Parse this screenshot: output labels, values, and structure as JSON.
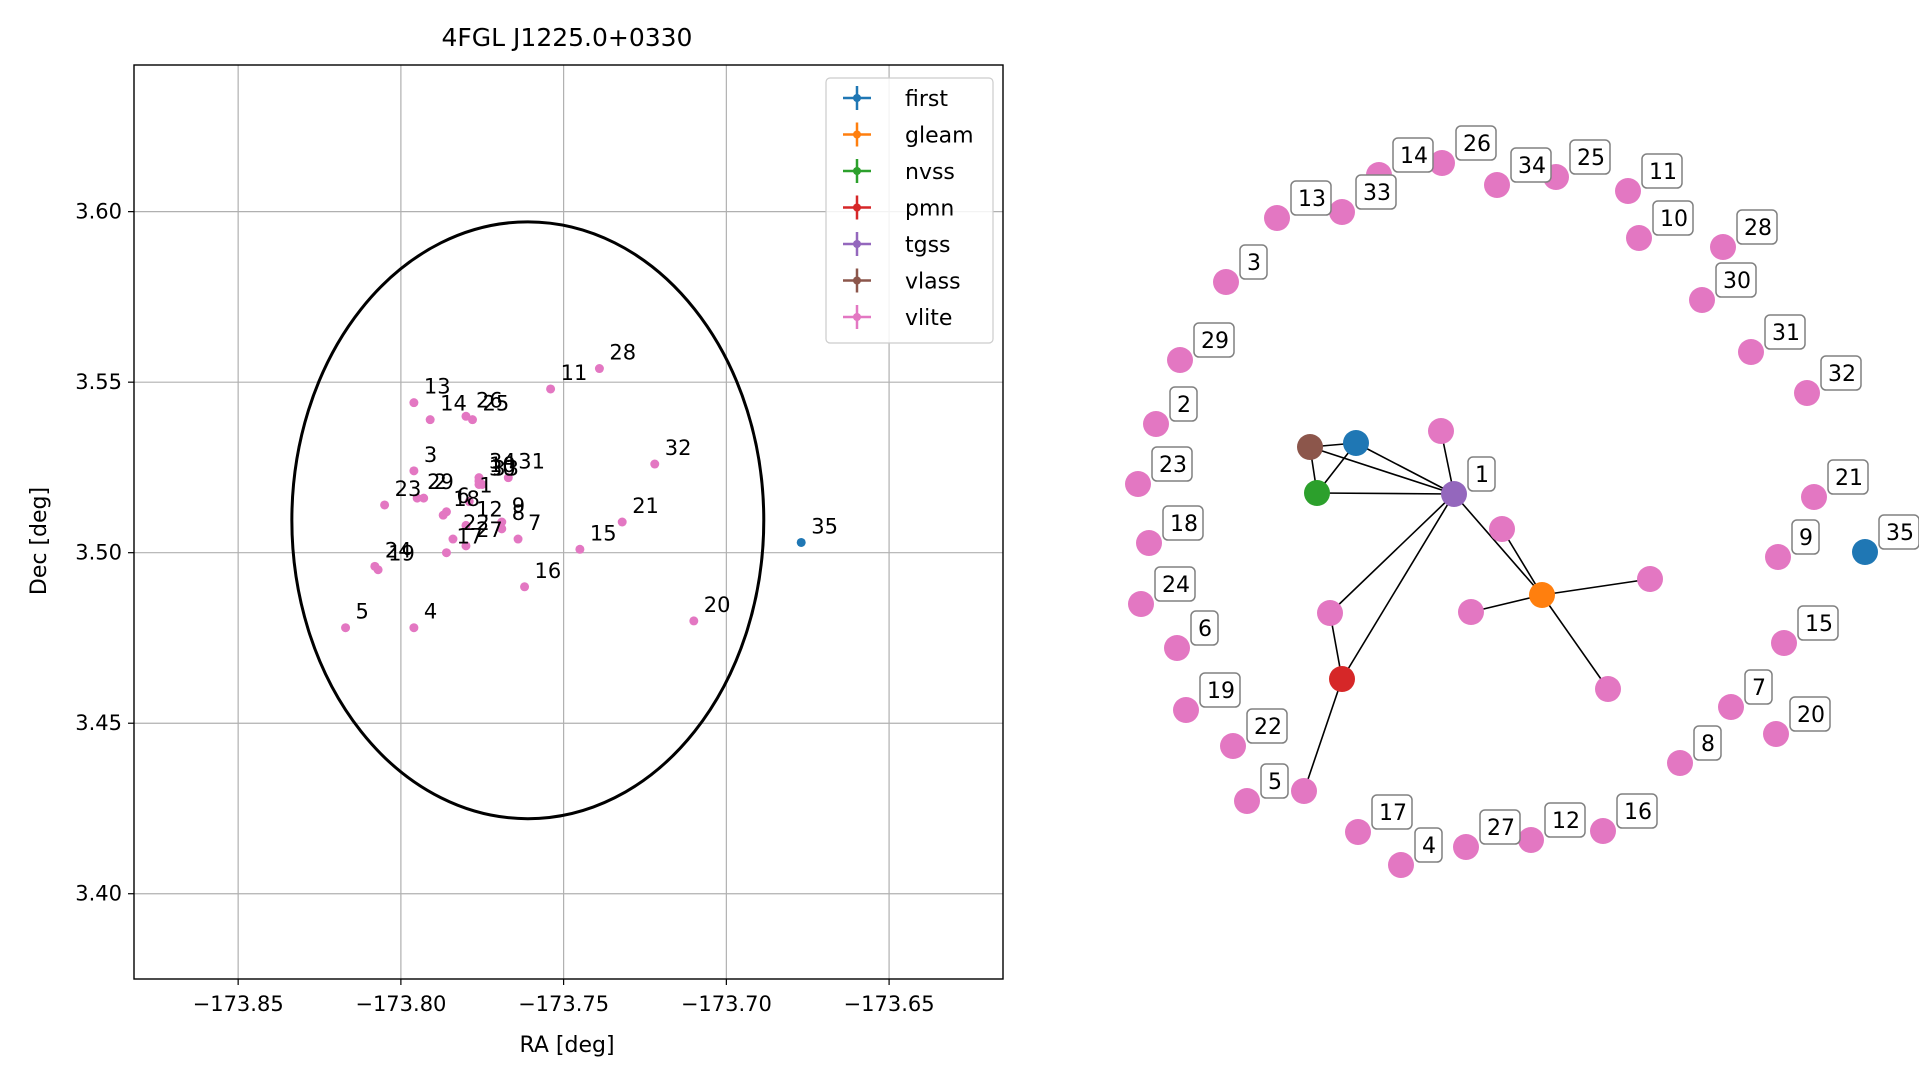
{
  "chart_data": [
    {
      "type": "scatter",
      "title": "4FGL J1225.0+0330",
      "xlabel": "RA [deg]",
      "ylabel": "Dec [deg]",
      "xlim": [
        -173.882,
        -173.615
      ],
      "ylim": [
        3.375,
        3.643
      ],
      "x_ticks": [
        -173.85,
        -173.8,
        -173.75,
        -173.7,
        -173.65
      ],
      "x_tick_labels": [
        "−173.85",
        "−173.80",
        "−173.75",
        "−173.70",
        "−173.65"
      ],
      "y_ticks": [
        3.4,
        3.45,
        3.5,
        3.55,
        3.6
      ],
      "y_tick_labels": [
        "3.40",
        "3.45",
        "3.50",
        "3.55",
        "3.60"
      ],
      "grid": true,
      "legend_position": "top-right",
      "legend": [
        {
          "name": "first",
          "color": "#1f77b4"
        },
        {
          "name": "gleam",
          "color": "#ff7f0e"
        },
        {
          "name": "nvss",
          "color": "#2ca02c"
        },
        {
          "name": "pmn",
          "color": "#d62728"
        },
        {
          "name": "tgss",
          "color": "#9467bd"
        },
        {
          "name": "vlass",
          "color": "#8c564b"
        },
        {
          "name": "vlite",
          "color": "#e377c2"
        }
      ],
      "ellipse": {
        "ra_center": -173.761,
        "dec_center": 3.5095,
        "ra_half_width": 0.0725,
        "dec_half_height": 0.0875,
        "color": "#000000"
      },
      "points": [
        {
          "label": "1",
          "ra": -173.779,
          "dec": 3.515,
          "catalog": "vlite"
        },
        {
          "label": "2",
          "ra": -173.793,
          "dec": 3.516,
          "catalog": "vlite"
        },
        {
          "label": "3",
          "ra": -173.796,
          "dec": 3.524,
          "catalog": "vlite"
        },
        {
          "label": "4",
          "ra": -173.796,
          "dec": 3.478,
          "catalog": "vlite"
        },
        {
          "label": "5",
          "ra": -173.817,
          "dec": 3.478,
          "catalog": "vlite"
        },
        {
          "label": "6",
          "ra": -173.786,
          "dec": 3.512,
          "catalog": "vlite"
        },
        {
          "label": "7",
          "ra": -173.764,
          "dec": 3.504,
          "catalog": "vlite"
        },
        {
          "label": "8",
          "ra": -173.769,
          "dec": 3.507,
          "catalog": "vlite"
        },
        {
          "label": "9",
          "ra": -173.769,
          "dec": 3.509,
          "catalog": "vlite"
        },
        {
          "label": "10",
          "ra": -173.776,
          "dec": 3.521,
          "catalog": "vlite"
        },
        {
          "label": "11",
          "ra": -173.754,
          "dec": 3.548,
          "catalog": "vlite"
        },
        {
          "label": "12",
          "ra": -173.78,
          "dec": 3.508,
          "catalog": "vlite"
        },
        {
          "label": "13",
          "ra": -173.796,
          "dec": 3.544,
          "catalog": "vlite"
        },
        {
          "label": "14",
          "ra": -173.791,
          "dec": 3.539,
          "catalog": "vlite"
        },
        {
          "label": "15",
          "ra": -173.745,
          "dec": 3.501,
          "catalog": "vlite"
        },
        {
          "label": "16",
          "ra": -173.762,
          "dec": 3.49,
          "catalog": "vlite"
        },
        {
          "label": "17",
          "ra": -173.786,
          "dec": 3.5,
          "catalog": "vlite"
        },
        {
          "label": "18",
          "ra": -173.787,
          "dec": 3.511,
          "catalog": "vlite"
        },
        {
          "label": "19",
          "ra": -173.807,
          "dec": 3.495,
          "catalog": "vlite"
        },
        {
          "label": "20",
          "ra": -173.71,
          "dec": 3.48,
          "catalog": "vlite"
        },
        {
          "label": "21",
          "ra": -173.732,
          "dec": 3.509,
          "catalog": "vlite"
        },
        {
          "label": "22",
          "ra": -173.784,
          "dec": 3.504,
          "catalog": "vlite"
        },
        {
          "label": "23",
          "ra": -173.805,
          "dec": 3.514,
          "catalog": "vlite"
        },
        {
          "label": "24",
          "ra": -173.808,
          "dec": 3.496,
          "catalog": "vlite"
        },
        {
          "label": "25",
          "ra": -173.778,
          "dec": 3.539,
          "catalog": "vlite"
        },
        {
          "label": "26",
          "ra": -173.78,
          "dec": 3.54,
          "catalog": "vlite"
        },
        {
          "label": "27",
          "ra": -173.78,
          "dec": 3.502,
          "catalog": "vlite"
        },
        {
          "label": "28",
          "ra": -173.739,
          "dec": 3.554,
          "catalog": "vlite"
        },
        {
          "label": "29",
          "ra": -173.795,
          "dec": 3.516,
          "catalog": "vlite"
        },
        {
          "label": "30",
          "ra": -173.776,
          "dec": 3.52,
          "catalog": "vlite"
        },
        {
          "label": "31",
          "ra": -173.767,
          "dec": 3.522,
          "catalog": "vlite"
        },
        {
          "label": "32",
          "ra": -173.722,
          "dec": 3.526,
          "catalog": "vlite"
        },
        {
          "label": "33",
          "ra": -173.775,
          "dec": 3.52,
          "catalog": "vlite"
        },
        {
          "label": "34",
          "ra": -173.776,
          "dec": 3.522,
          "catalog": "vlite"
        },
        {
          "label": "35",
          "ra": -173.677,
          "dec": 3.503,
          "catalog": "first"
        }
      ]
    },
    {
      "type": "network",
      "node_colors": {
        "first": "#1f77b4",
        "gleam": "#ff7f0e",
        "nvss": "#2ca02c",
        "pmn": "#d62728",
        "tgss": "#9467bd",
        "vlass": "#8c564b",
        "vlite": "#e377c2"
      },
      "labeled_nodes": [
        "1",
        "2",
        "3",
        "4",
        "5",
        "6",
        "7",
        "8",
        "9",
        "10",
        "11",
        "12",
        "13",
        "14",
        "15",
        "16",
        "17",
        "18",
        "19",
        "20",
        "21",
        "22",
        "23",
        "24",
        "25",
        "26",
        "27",
        "28",
        "29",
        "30",
        "31",
        "32",
        "33",
        "34",
        "35"
      ]
    }
  ]
}
